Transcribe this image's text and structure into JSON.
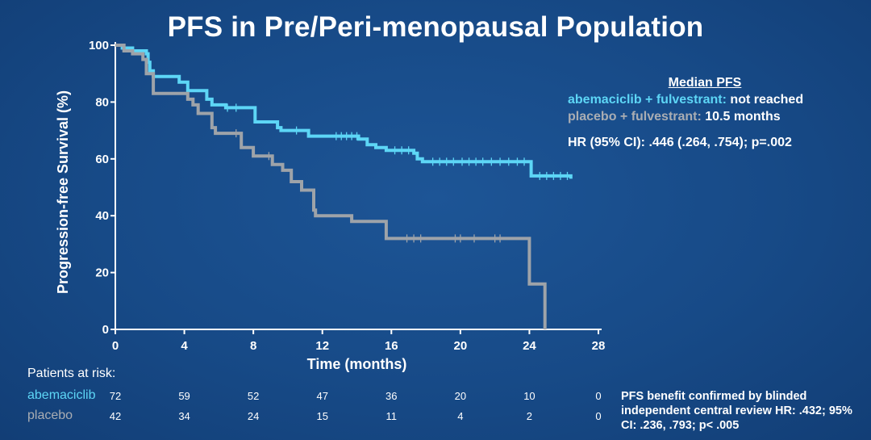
{
  "title": "PFS in Pre/Peri-menopausal Population",
  "legend": {
    "header": "Median PFS",
    "abema_name": "abemaciclib + fulvestrant:",
    "abema_value": " not reached",
    "placebo_name": "placebo + fulvestrant:",
    "placebo_value": " 10.5 months",
    "hr": "HR (95% CI): .446 (.264, .754); p=.002"
  },
  "risk_table": {
    "title": "Patients at risk:",
    "abema_label": "abemaciclib",
    "placebo_label": "placebo",
    "times": [
      0,
      4,
      8,
      12,
      16,
      20,
      24,
      28
    ],
    "abema": [
      "72",
      "59",
      "52",
      "47",
      "36",
      "20",
      "10",
      "0"
    ],
    "placebo": [
      "42",
      "34",
      "24",
      "15",
      "11",
      "4",
      "2",
      "0"
    ]
  },
  "footnote": "PFS benefit confirmed by blinded independent central review HR: .432; 95% CI: .236, .793; p< .005",
  "colors": {
    "abemaciclib": "#5dd6f6",
    "placebo": "#9ea3a9",
    "background": "#174a87",
    "axis": "#ffffff"
  },
  "chart_data": {
    "type": "line",
    "title": "PFS in Pre/Peri-menopausal Population",
    "xlabel": "Time (months)",
    "ylabel": "Progression-free Survival (%)",
    "xlim": [
      0,
      28
    ],
    "ylim": [
      0,
      100
    ],
    "xticks": [
      0,
      4,
      8,
      12,
      16,
      20,
      24,
      28
    ],
    "yticks": [
      0,
      20,
      40,
      60,
      80,
      100
    ],
    "grid": false,
    "step": true,
    "series": [
      {
        "name": "abemaciclib",
        "color": "#5dd6f6",
        "points": [
          [
            0,
            100
          ],
          [
            0.4,
            99
          ],
          [
            1.0,
            98
          ],
          [
            1.8,
            97
          ],
          [
            1.9,
            94
          ],
          [
            2.0,
            91
          ],
          [
            2.2,
            89
          ],
          [
            3.7,
            87
          ],
          [
            4.2,
            84
          ],
          [
            5.3,
            81
          ],
          [
            5.6,
            79
          ],
          [
            6.4,
            78
          ],
          [
            8.1,
            73
          ],
          [
            9.4,
            71
          ],
          [
            9.6,
            70
          ],
          [
            11.2,
            68
          ],
          [
            14.1,
            67
          ],
          [
            14.6,
            65
          ],
          [
            15.1,
            64
          ],
          [
            15.7,
            63
          ],
          [
            17.3,
            62
          ],
          [
            17.5,
            60
          ],
          [
            17.8,
            59
          ],
          [
            24.1,
            54
          ],
          [
            26.4,
            53
          ]
        ],
        "censor_x": [
          6.5,
          7.0,
          10.5,
          12.8,
          13.1,
          13.4,
          13.7,
          14.0,
          16.2,
          16.6,
          17.0,
          18.4,
          18.8,
          19.2,
          19.6,
          20.1,
          20.5,
          20.9,
          21.3,
          21.8,
          22.3,
          22.8,
          23.3,
          23.7,
          24.6,
          25.0,
          25.4,
          25.8,
          26.2
        ]
      },
      {
        "name": "placebo",
        "color": "#9ea3a9",
        "points": [
          [
            0,
            100
          ],
          [
            0.5,
            98
          ],
          [
            1.0,
            97
          ],
          [
            1.6,
            95
          ],
          [
            1.8,
            90
          ],
          [
            2.2,
            83
          ],
          [
            4.2,
            81
          ],
          [
            4.5,
            79
          ],
          [
            4.8,
            76
          ],
          [
            5.6,
            71
          ],
          [
            5.8,
            69
          ],
          [
            7.3,
            64
          ],
          [
            8.0,
            61
          ],
          [
            9.1,
            58
          ],
          [
            9.7,
            56
          ],
          [
            10.2,
            52
          ],
          [
            10.8,
            49
          ],
          [
            11.5,
            42
          ],
          [
            11.6,
            40
          ],
          [
            13.7,
            38
          ],
          [
            15.7,
            32
          ],
          [
            24.0,
            16
          ],
          [
            24.9,
            0
          ]
        ],
        "censor_x": [
          7.0,
          8.9,
          16.9,
          17.3,
          17.7,
          19.7,
          20.0,
          20.8,
          22.0,
          22.3
        ]
      }
    ]
  }
}
